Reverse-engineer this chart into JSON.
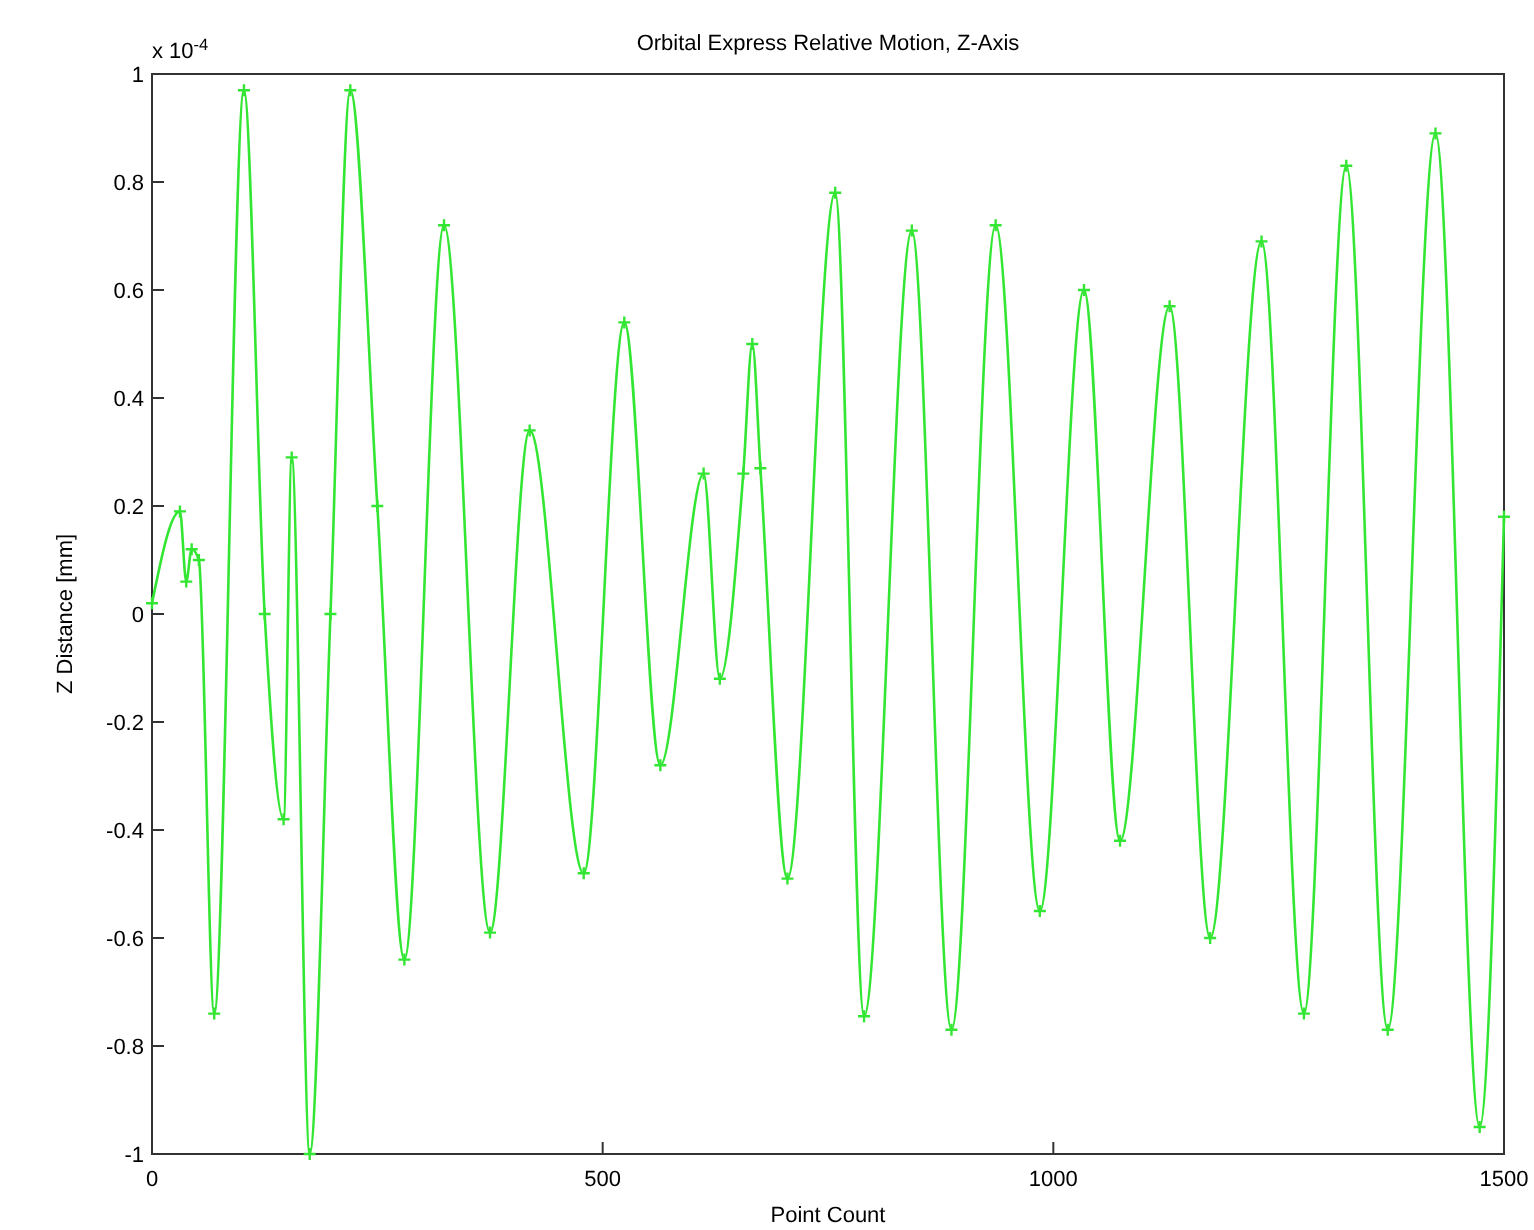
{
  "chart_data": {
    "type": "line",
    "title": "Orbital Express Relative Motion, Z-Axis",
    "xlabel": "Point Count",
    "ylabel": "Z Distance [mm]",
    "annotations": [
      "x 10$^{-4}$"
    ],
    "xlim": [
      0,
      1500
    ],
    "xticks": [
      0,
      500,
      1000,
      1500
    ],
    "ylim": [
      -1,
      1
    ],
    "yticks": [
      -1,
      -0.8,
      -0.6,
      -0.4,
      -0.2,
      0,
      0.2,
      0.4,
      0.6,
      0.8,
      1
    ],
    "grid": false,
    "marker": "cross",
    "line_style": "solid",
    "series": [
      {
        "color": "#33e633",
        "x": [
          0,
          31,
          38,
          44,
          52,
          69,
          102,
          125,
          146,
          155,
          175,
          198,
          220,
          250,
          280,
          324,
          375,
          419,
          479,
          524,
          564,
          612,
          630,
          656,
          666,
          675,
          705,
          758,
          790,
          843,
          887,
          936,
          985,
          1034,
          1074,
          1129,
          1174,
          1231,
          1278,
          1325,
          1371,
          1424,
          1473,
          1500
        ],
        "values": [
          0.02,
          0.19,
          0.06,
          0.12,
          0.1,
          -0.74,
          0.97,
          0.0,
          -0.38,
          0.29,
          -1.0,
          0.0,
          0.97,
          0.2,
          -0.64,
          0.72,
          -0.59,
          0.34,
          -0.48,
          0.54,
          -0.28,
          0.26,
          -0.12,
          0.26,
          0.5,
          0.27,
          -0.49,
          0.78,
          -0.745,
          0.71,
          -0.77,
          0.72,
          -0.55,
          0.6,
          -0.42,
          0.57,
          -0.6,
          0.69,
          -0.74,
          0.83,
          -0.77,
          0.89,
          -0.95,
          0.18
        ]
      }
    ]
  }
}
